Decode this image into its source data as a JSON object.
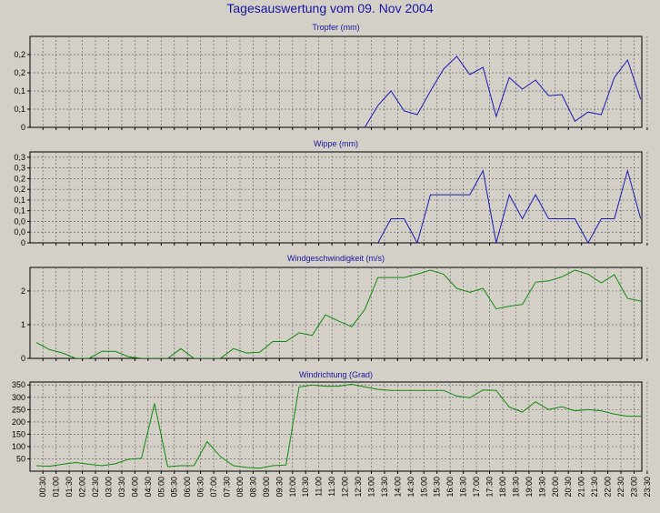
{
  "title": "Tagesauswertung vom 09. Nov 2004",
  "time_labels": [
    "00:30",
    "01:00",
    "01:30",
    "02:00",
    "02:30",
    "03:00",
    "03:30",
    "04:00",
    "04:30",
    "05:00",
    "05:30",
    "06:00",
    "06:30",
    "07:00",
    "07:30",
    "08:00",
    "08:30",
    "09:00",
    "09:30",
    "10:00",
    "10:30",
    "11:00",
    "11:30",
    "12:00",
    "12:30",
    "13:00",
    "13:30",
    "14:00",
    "14:30",
    "15:00",
    "15:30",
    "16:00",
    "16:30",
    "17:00",
    "17:30",
    "18:00",
    "18:30",
    "19:00",
    "19:30",
    "20:00",
    "20:30",
    "21:00",
    "21:30",
    "22:00",
    "22:30",
    "23:00",
    "23:30"
  ],
  "chart_data": [
    {
      "type": "line",
      "title": "Tropfer (mm)",
      "color": "#1a1ab4",
      "ylim": [
        0,
        0.25
      ],
      "yticks": [
        0,
        0.05,
        0.1,
        0.15,
        0.2
      ],
      "ytick_labels": [
        "0",
        "0,1",
        "0,1",
        "0,2",
        "0,2"
      ],
      "points": [
        [
          24.5,
          0
        ],
        [
          25.5,
          0.06
        ],
        [
          26.5,
          0.1
        ],
        [
          27.5,
          0.045
        ],
        [
          28.5,
          0.035
        ],
        [
          29.5,
          0.1
        ],
        [
          30.5,
          0.16
        ],
        [
          31.5,
          0.195
        ],
        [
          32.5,
          0.145
        ],
        [
          33.5,
          0.165
        ],
        [
          34.5,
          0.03
        ],
        [
          35.5,
          0.137
        ],
        [
          36.5,
          0.105
        ],
        [
          37.5,
          0.13
        ],
        [
          38.5,
          0.087
        ],
        [
          39.5,
          0.09
        ],
        [
          40.5,
          0.017
        ],
        [
          41.5,
          0.042
        ],
        [
          42.5,
          0.035
        ],
        [
          43.5,
          0.137
        ],
        [
          44.5,
          0.185
        ],
        [
          45.5,
          0.077
        ]
      ]
    },
    {
      "type": "line",
      "title": "Wippe (mm)",
      "color": "#1a1ab4",
      "ylim": [
        0,
        0.34
      ],
      "yticks": [
        0,
        0.04,
        0.08,
        0.12,
        0.16,
        0.2,
        0.24,
        0.28,
        0.32
      ],
      "ytick_labels": [
        "0",
        "0,0",
        "0,0",
        "0,1",
        "0,1",
        "0,2",
        "0,2",
        "0,3",
        "0,3"
      ],
      "points": [
        [
          25.5,
          0
        ],
        [
          26.5,
          0.09
        ],
        [
          27.5,
          0.09
        ],
        [
          28.5,
          0
        ],
        [
          29.5,
          0.18
        ],
        [
          30.5,
          0.18
        ],
        [
          31.5,
          0.18
        ],
        [
          32.5,
          0.18
        ],
        [
          33.5,
          0.27
        ],
        [
          34.5,
          0
        ],
        [
          35.5,
          0.18
        ],
        [
          36.5,
          0.09
        ],
        [
          37.5,
          0.18
        ],
        [
          38.5,
          0.09
        ],
        [
          39.5,
          0.09
        ],
        [
          40.5,
          0.09
        ],
        [
          41.5,
          0
        ],
        [
          42.5,
          0.09
        ],
        [
          43.5,
          0.09
        ],
        [
          44.5,
          0.27
        ],
        [
          45.5,
          0.09
        ]
      ]
    },
    {
      "type": "line",
      "title": "Windgeschwindigkeit (m/s)",
      "color": "#0e8a0e",
      "ylim": [
        0,
        2.7
      ],
      "yticks": [
        0,
        1,
        2
      ],
      "ytick_labels": [
        "0",
        "1",
        "2"
      ],
      "points": [
        [
          -0.5,
          0.47
        ],
        [
          0.5,
          0.26
        ],
        [
          1.5,
          0.16
        ],
        [
          2.5,
          0
        ],
        [
          3.5,
          0
        ],
        [
          4.5,
          0.21
        ],
        [
          5.5,
          0.21
        ],
        [
          6.5,
          0.05
        ],
        [
          7.5,
          0
        ],
        [
          8.5,
          0
        ],
        [
          9.5,
          0
        ],
        [
          10.5,
          0.29
        ],
        [
          11.5,
          0
        ],
        [
          12.5,
          0
        ],
        [
          13.5,
          0
        ],
        [
          14.5,
          0.29
        ],
        [
          15.5,
          0.16
        ],
        [
          16.5,
          0.18
        ],
        [
          17.5,
          0.5
        ],
        [
          18.5,
          0.5
        ],
        [
          19.5,
          0.76
        ],
        [
          20.5,
          0.68
        ],
        [
          21.5,
          1.29
        ],
        [
          22.5,
          1.11
        ],
        [
          23.5,
          0.94
        ],
        [
          24.5,
          1.45
        ],
        [
          25.5,
          2.4
        ],
        [
          26.5,
          2.4
        ],
        [
          27.5,
          2.4
        ],
        [
          28.5,
          2.5
        ],
        [
          29.5,
          2.62
        ],
        [
          30.5,
          2.5
        ],
        [
          31.5,
          2.08
        ],
        [
          32.5,
          1.96
        ],
        [
          33.5,
          2.08
        ],
        [
          34.5,
          1.47
        ],
        [
          35.5,
          1.55
        ],
        [
          36.5,
          1.6
        ],
        [
          37.5,
          2.26
        ],
        [
          38.5,
          2.3
        ],
        [
          39.5,
          2.42
        ],
        [
          40.5,
          2.62
        ],
        [
          41.5,
          2.5
        ],
        [
          42.5,
          2.24
        ],
        [
          43.5,
          2.48
        ],
        [
          44.5,
          1.78
        ],
        [
          45.5,
          1.7
        ],
        [
          46.5,
          1.91
        ]
      ]
    },
    {
      "type": "line",
      "title": "Windrichtung (Grad)",
      "color": "#0e8a0e",
      "ylim": [
        0,
        362
      ],
      "yticks": [
        50,
        100,
        150,
        200,
        250,
        300,
        350
      ],
      "ytick_labels": [
        "50",
        "100",
        "150",
        "200",
        "250",
        "300",
        "350"
      ],
      "points": [
        [
          -0.5,
          22
        ],
        [
          0.5,
          20
        ],
        [
          1.5,
          28
        ],
        [
          2.5,
          35
        ],
        [
          3.5,
          28
        ],
        [
          4.5,
          22
        ],
        [
          5.5,
          30
        ],
        [
          6.5,
          48
        ],
        [
          7.5,
          52
        ],
        [
          8.5,
          275
        ],
        [
          9.5,
          18
        ],
        [
          10.5,
          22
        ],
        [
          11.5,
          22
        ],
        [
          12.5,
          120
        ],
        [
          13.5,
          60
        ],
        [
          14.5,
          22
        ],
        [
          15.5,
          15
        ],
        [
          16.5,
          12
        ],
        [
          17.5,
          22
        ],
        [
          18.5,
          25
        ],
        [
          19.5,
          342
        ],
        [
          20.5,
          350
        ],
        [
          21.5,
          345
        ],
        [
          22.5,
          345
        ],
        [
          23.5,
          353
        ],
        [
          24.5,
          342
        ],
        [
          25.5,
          332
        ],
        [
          26.5,
          328
        ],
        [
          27.5,
          328
        ],
        [
          28.5,
          328
        ],
        [
          29.5,
          328
        ],
        [
          30.5,
          328
        ],
        [
          31.5,
          305
        ],
        [
          32.5,
          298
        ],
        [
          33.5,
          330
        ],
        [
          34.5,
          328
        ],
        [
          35.5,
          260
        ],
        [
          36.5,
          240
        ],
        [
          37.5,
          282
        ],
        [
          38.5,
          250
        ],
        [
          39.5,
          262
        ],
        [
          40.5,
          245
        ],
        [
          41.5,
          250
        ],
        [
          42.5,
          245
        ],
        [
          43.5,
          232
        ],
        [
          44.5,
          223
        ],
        [
          45.5,
          223
        ],
        [
          46.5,
          223
        ]
      ]
    }
  ]
}
